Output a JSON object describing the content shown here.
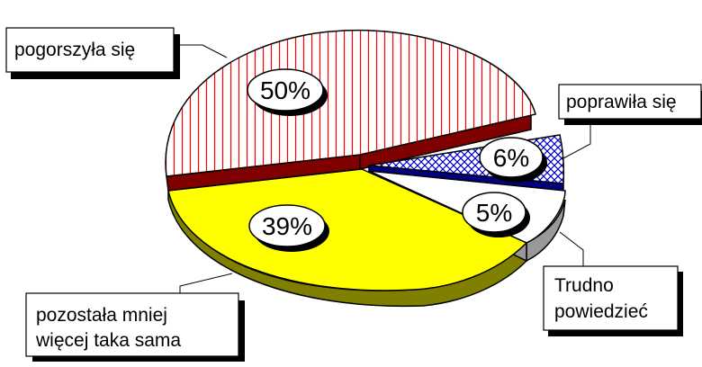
{
  "chart_data": {
    "type": "pie",
    "style": "3d-exploded",
    "title": "",
    "slices": [
      {
        "label": "pogorszyła się",
        "value": 50,
        "value_label": "50%",
        "fill": "#ffffff",
        "hatch": "vertical",
        "hatch_color": "#ff0000",
        "side_color": "#800000"
      },
      {
        "label": "poprawiła się",
        "value": 6,
        "value_label": "6%",
        "fill": "#ffffff",
        "hatch": "crosshatch",
        "hatch_color": "#0000cc",
        "side_color": "#000080"
      },
      {
        "label": "Trudno powiedzieć",
        "label_lines": [
          "Trudno",
          "powiedzieć"
        ],
        "value": 5,
        "value_label": "5%",
        "fill": "#ffffff",
        "hatch": "none",
        "hatch_color": "",
        "side_color": "#999999"
      },
      {
        "label": "pozostała mniej więcej taka sama",
        "label_lines": [
          "pozostała mniej",
          "więcej taka sama"
        ],
        "value": 39,
        "value_label": "39%",
        "fill": "#ffff00",
        "hatch": "none",
        "hatch_color": "",
        "side_color": "#808000"
      }
    ]
  }
}
